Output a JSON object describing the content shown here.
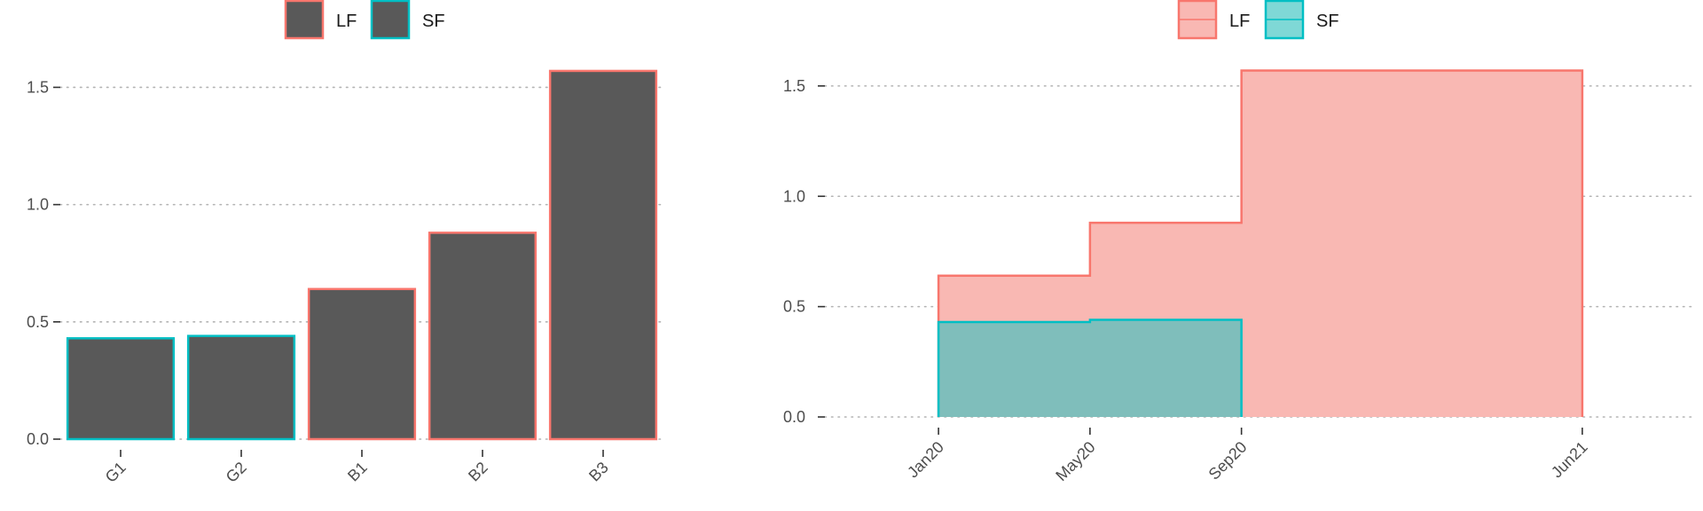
{
  "colors": {
    "lf": "#F8766D",
    "sf": "#00BFC4",
    "bar_fill": "#595959",
    "lf_area": "#F9B8B3",
    "sf_area": "#7FBEBB",
    "legend_sf_fill": "#7FD8D6"
  },
  "chart_data": [
    {
      "type": "bar",
      "title": "",
      "xlabel": "",
      "ylabel": "",
      "categories": [
        "G1",
        "G2",
        "B1",
        "B2",
        "B3"
      ],
      "values": [
        0.43,
        0.44,
        0.64,
        0.88,
        1.57
      ],
      "groups": [
        "SF",
        "SF",
        "LF",
        "LF",
        "LF"
      ],
      "ylim": [
        0,
        1.6
      ],
      "yticks": [
        0.0,
        0.5,
        1.0,
        1.5
      ],
      "ytick_labels": [
        "0.0",
        "0.5",
        "1.0",
        "1.5"
      ],
      "grid": "horizontal dotted",
      "legend": {
        "position": "top",
        "entries": [
          "LF",
          "SF"
        ]
      }
    },
    {
      "type": "area",
      "title": "",
      "xlabel": "",
      "ylabel": "",
      "step": true,
      "xticks": [
        "Jan20",
        "May20",
        "Sep20",
        "Jun21"
      ],
      "xlim": [
        "Oct19",
        "Sep21"
      ],
      "series": [
        {
          "name": "LF",
          "x": [
            "Jan20",
            "May20",
            "Sep20",
            "Jun21"
          ],
          "y": [
            0.64,
            0.88,
            1.57,
            1.57
          ]
        },
        {
          "name": "SF",
          "x": [
            "Jan20",
            "May20",
            "Sep20"
          ],
          "y": [
            0.43,
            0.44,
            0.44
          ]
        }
      ],
      "ylim": [
        0,
        1.6
      ],
      "yticks": [
        0.0,
        0.5,
        1.0,
        1.5
      ],
      "ytick_labels": [
        "0.0",
        "0.5",
        "1.0",
        "1.5"
      ],
      "grid": "horizontal dotted",
      "legend": {
        "position": "top",
        "entries": [
          "LF",
          "SF"
        ]
      }
    }
  ]
}
